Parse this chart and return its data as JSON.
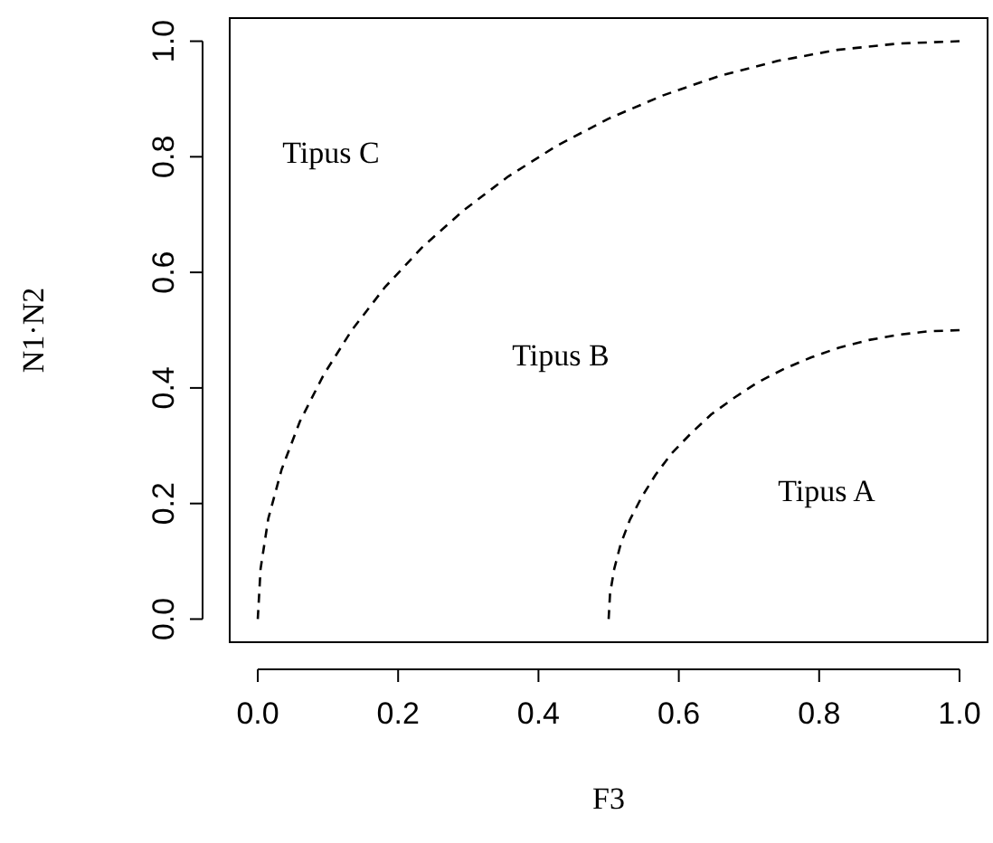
{
  "chart_data": {
    "type": "line",
    "xlabel": "F3",
    "ylabel": "N1·N2",
    "xlim": [
      -0.04,
      1.04
    ],
    "ylim": [
      -0.04,
      1.04
    ],
    "xticks": [
      {
        "value": 0,
        "label": "0.0"
      },
      {
        "value": 0.2,
        "label": "0.2"
      },
      {
        "value": 0.4,
        "label": "0.4"
      },
      {
        "value": 0.6,
        "label": "0.6"
      },
      {
        "value": 0.8,
        "label": "0.8"
      },
      {
        "value": 1,
        "label": "1.0"
      }
    ],
    "yticks": [
      {
        "value": 0,
        "label": "0.0"
      },
      {
        "value": 0.2,
        "label": "0.2"
      },
      {
        "value": 0.4,
        "label": "0.4"
      },
      {
        "value": 0.6,
        "label": "0.6"
      },
      {
        "value": 0.8,
        "label": "0.8"
      },
      {
        "value": 1,
        "label": "1.0"
      }
    ],
    "grid": false,
    "marker": "none",
    "line_style": "dashed",
    "series": [
      {
        "color": "#000000",
        "x": [
          0,
          0.004,
          0.015,
          0.034,
          0.06,
          0.094,
          0.134,
          0.181,
          0.234,
          0.293,
          0.357,
          0.426,
          0.5,
          0.577,
          0.658,
          0.741,
          0.826,
          0.913,
          1
        ],
        "values": [
          0,
          0.087,
          0.174,
          0.259,
          0.342,
          0.423,
          0.5,
          0.574,
          0.643,
          0.707,
          0.766,
          0.819,
          0.866,
          0.906,
          0.94,
          0.966,
          0.985,
          0.996,
          1
        ]
      },
      {
        "color": "#000000",
        "x": [
          0.5,
          0.502,
          0.508,
          0.517,
          0.53,
          0.547,
          0.567,
          0.59,
          0.617,
          0.646,
          0.679,
          0.713,
          0.75,
          0.789,
          0.829,
          0.871,
          0.913,
          0.956,
          1
        ],
        "values": [
          0,
          0.044,
          0.087,
          0.129,
          0.171,
          0.211,
          0.25,
          0.287,
          0.321,
          0.354,
          0.383,
          0.41,
          0.433,
          0.453,
          0.47,
          0.483,
          0.492,
          0.498,
          0.5
        ]
      }
    ],
    "annotations": [
      "Tipus C",
      "Tipus B",
      "Tipus A"
    ]
  }
}
